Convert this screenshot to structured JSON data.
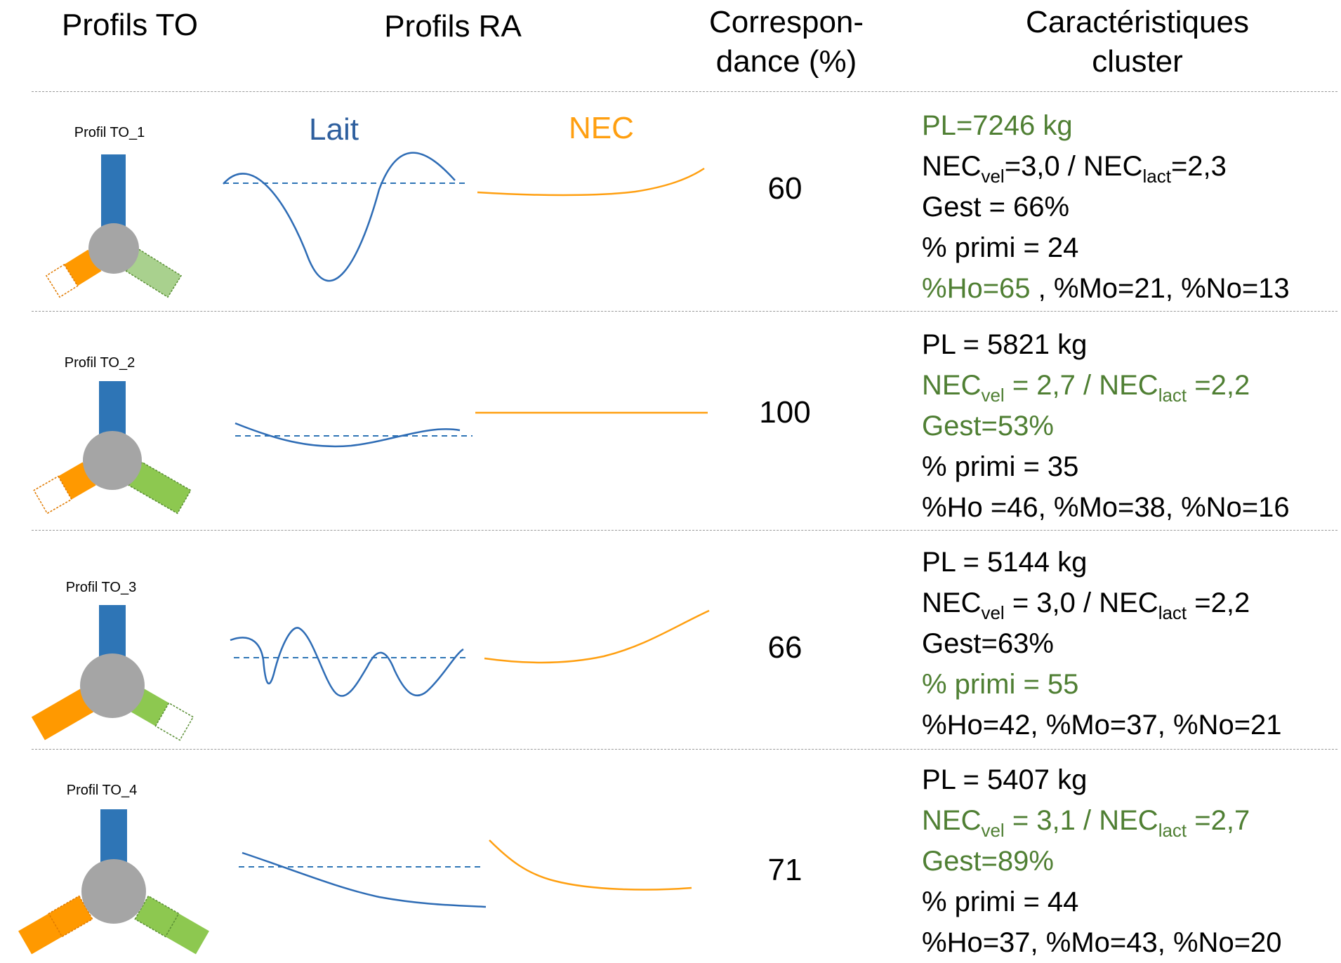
{
  "headers": {
    "profils_to": "Profils TO",
    "profils_ra": "Profils RA",
    "correspondance_line1": "Correspon-",
    "correspondance_line2": "dance (%)",
    "caracteristiques_line1": "Caractéristiques",
    "caracteristiques_line2": "cluster"
  },
  "series_titles": {
    "lait": "Lait",
    "nec": "NEC"
  },
  "colors": {
    "blue_bar": "#2e75b6",
    "orange_bar": "#ff9900",
    "green_bar": "#8dc850",
    "light_green_bar": "#a9d18e",
    "hub": "#a5a5a5",
    "lait_curve": "#2e6cb5",
    "nec_curve": "#ff9f10",
    "green_text": "#4f7f33"
  },
  "clusters": [
    {
      "profile_label": "Profil TO_1",
      "correspondance": "60",
      "lines": [
        {
          "green": true,
          "parts": [
            {
              "t": "PL=7246 kg"
            }
          ]
        },
        {
          "green": false,
          "parts": [
            {
              "t": "NEC"
            },
            {
              "t": "vel",
              "sub": true
            },
            {
              "t": "=3,0 / NEC"
            },
            {
              "t": "lact",
              "sub": true
            },
            {
              "t": "=2,3"
            }
          ]
        },
        {
          "green": false,
          "parts": [
            {
              "t": "Gest = 66%"
            }
          ]
        },
        {
          "green": false,
          "parts": [
            {
              "t": "% primi = 24"
            }
          ]
        },
        {
          "green": false,
          "parts": [
            {
              "t": "%Ho=65",
              "green": true
            },
            {
              "t": " , %Mo=21, %No=13"
            }
          ]
        }
      ]
    },
    {
      "profile_label": "Profil TO_2",
      "correspondance": "100",
      "lines": [
        {
          "green": false,
          "parts": [
            {
              "t": "PL = 5821 kg"
            }
          ]
        },
        {
          "green": true,
          "parts": [
            {
              "t": "NEC"
            },
            {
              "t": "vel",
              "sub": true
            },
            {
              "t": " = 2,7 / NEC"
            },
            {
              "t": "lact",
              "sub": true
            },
            {
              "t": " =2,2"
            }
          ]
        },
        {
          "green": true,
          "parts": [
            {
              "t": "Gest=53%"
            }
          ]
        },
        {
          "green": false,
          "parts": [
            {
              "t": "% primi = 35"
            }
          ]
        },
        {
          "green": false,
          "parts": [
            {
              "t": "%Ho =46, %Mo=38, %No=16"
            }
          ]
        }
      ]
    },
    {
      "profile_label": "Profil TO_3",
      "correspondance": "66",
      "lines": [
        {
          "green": false,
          "parts": [
            {
              "t": "PL = 5144 kg"
            }
          ]
        },
        {
          "green": false,
          "parts": [
            {
              "t": "NEC"
            },
            {
              "t": "vel",
              "sub": true
            },
            {
              "t": " = 3,0 / NEC"
            },
            {
              "t": "lact",
              "sub": true
            },
            {
              "t": " =2,2"
            }
          ]
        },
        {
          "green": false,
          "parts": [
            {
              "t": "Gest=63%"
            }
          ]
        },
        {
          "green": true,
          "parts": [
            {
              "t": "% primi = 55"
            }
          ]
        },
        {
          "green": false,
          "parts": [
            {
              "t": "%Ho=42, %Mo=37, %No=21"
            }
          ]
        }
      ]
    },
    {
      "profile_label": "Profil TO_4",
      "correspondance": "71",
      "lines": [
        {
          "green": false,
          "parts": [
            {
              "t": "PL = 5407 kg"
            }
          ]
        },
        {
          "green": true,
          "parts": [
            {
              "t": "NEC"
            },
            {
              "t": "vel",
              "sub": true
            },
            {
              "t": " = 3,1 / NEC"
            },
            {
              "t": "lact",
              "sub": true
            },
            {
              "t": " =2,7"
            }
          ]
        },
        {
          "green": true,
          "parts": [
            {
              "t": "Gest=89%"
            }
          ]
        },
        {
          "green": false,
          "parts": [
            {
              "t": "% primi = 44"
            }
          ]
        },
        {
          "green": false,
          "parts": [
            {
              "t": "%Ho=37, %Mo=43, %No=20"
            }
          ]
        }
      ]
    }
  ]
}
